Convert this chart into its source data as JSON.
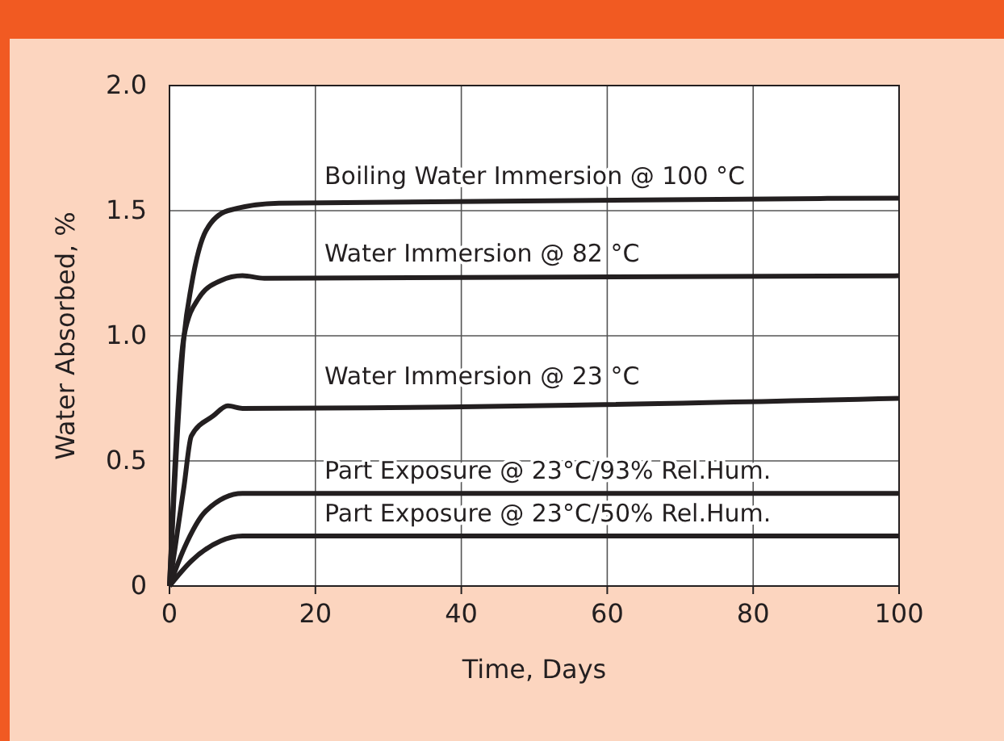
{
  "chart_data": {
    "type": "line",
    "xlabel": "Time, Days",
    "ylabel": "Water Absorbed, %",
    "xlim": [
      0,
      100
    ],
    "xticks": [
      0,
      20,
      40,
      60,
      80,
      100
    ],
    "ylim": [
      0,
      2
    ],
    "yticks": [
      0,
      0.5,
      {
        "value": 1,
        "label": "1.0"
      },
      1.5,
      {
        "value": 2,
        "label": "2.0"
      }
    ],
    "grid": true,
    "marker": "none",
    "line_style": "solid",
    "series": [
      {
        "name": "Boiling Water Immersion @ 100 °C",
        "color": "#231f20",
        "x": [
          0,
          2,
          3,
          5,
          8,
          15,
          100
        ],
        "values": [
          0,
          1.0,
          1.2,
          1.42,
          1.5,
          1.53,
          1.55
        ]
      },
      {
        "name": "Water Immersion @ 82 °C",
        "color": "#231f20",
        "x": [
          0,
          2,
          4,
          7,
          10,
          13,
          100
        ],
        "values": [
          0,
          1.0,
          1.15,
          1.22,
          1.24,
          1.23,
          1.24
        ]
      },
      {
        "name": "Water Immersion @ 23 °C",
        "color": "#231f20",
        "x": [
          0,
          2,
          3,
          6,
          8,
          10,
          100
        ],
        "values": [
          0,
          0.4,
          0.6,
          0.68,
          0.72,
          0.71,
          0.75
        ]
      },
      {
        "name": "Part Exposure @ 23°C/93% Rel.Hum.",
        "color": "#231f20",
        "x": [
          0,
          2,
          5,
          10,
          100
        ],
        "values": [
          0,
          0.15,
          0.3,
          0.37,
          0.37
        ]
      },
      {
        "name": "Part Exposure @ 23°C/50% Rel.Hum.",
        "color": "#231f20",
        "x": [
          0,
          3,
          7,
          10,
          100
        ],
        "values": [
          0,
          0.1,
          0.18,
          0.2,
          0.2
        ]
      }
    ]
  }
}
